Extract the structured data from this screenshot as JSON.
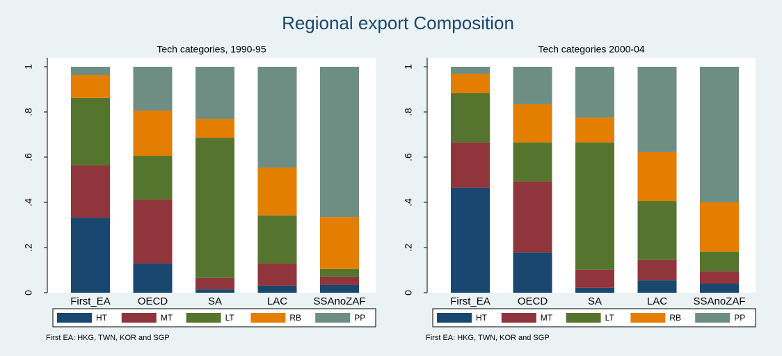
{
  "title": "Regional export Composition",
  "chart_data": [
    {
      "type": "stacked-bar",
      "title": "Tech categories, 1990-95",
      "categories": [
        "First_EA",
        "OECD",
        "SA",
        "LAC",
        "SSAnoZAF"
      ],
      "series": [
        {
          "name": "HT",
          "color": "#1a476f",
          "values": [
            0.332,
            0.129,
            0.015,
            0.031,
            0.034
          ]
        },
        {
          "name": "MT",
          "color": "#90353b",
          "values": [
            0.231,
            0.283,
            0.05,
            0.098,
            0.037
          ]
        },
        {
          "name": "LT",
          "color": "#55752f",
          "values": [
            0.299,
            0.194,
            0.621,
            0.213,
            0.034
          ]
        },
        {
          "name": "RB",
          "color": "#e37e00",
          "values": [
            0.101,
            0.2,
            0.083,
            0.212,
            0.23
          ]
        },
        {
          "name": "PP",
          "color": "#6e8e84",
          "values": [
            0.037,
            0.194,
            0.231,
            0.446,
            0.665
          ]
        }
      ],
      "ylim": [
        0,
        1
      ],
      "yticks": [
        0,
        {
          "value": 0.2,
          "label": ".2"
        },
        {
          "value": 0.4,
          "label": ".4"
        },
        {
          "value": 0.6,
          "label": ".6"
        },
        {
          "value": 0.8,
          "label": ".8"
        },
        1
      ],
      "note": "First EA: HKG, TWN, KOR and SGP"
    },
    {
      "type": "stacked-bar",
      "title": "Tech categories 2000-04",
      "categories": [
        "First_EA",
        "OECD",
        "SA",
        "LAC",
        "SSAnoZAF"
      ],
      "series": [
        {
          "name": "HT",
          "color": "#1a476f",
          "values": [
            0.465,
            0.178,
            0.022,
            0.055,
            0.04
          ]
        },
        {
          "name": "MT",
          "color": "#90353b",
          "values": [
            0.2,
            0.314,
            0.08,
            0.09,
            0.055
          ]
        },
        {
          "name": "LT",
          "color": "#55752f",
          "values": [
            0.218,
            0.173,
            0.563,
            0.261,
            0.087
          ]
        },
        {
          "name": "RB",
          "color": "#e37e00",
          "values": [
            0.086,
            0.169,
            0.11,
            0.216,
            0.218
          ]
        },
        {
          "name": "PP",
          "color": "#6e8e84",
          "values": [
            0.031,
            0.166,
            0.225,
            0.378,
            0.6
          ]
        }
      ],
      "ylim": [
        0,
        1
      ],
      "yticks": [
        0,
        {
          "value": 0.2,
          "label": ".2"
        },
        {
          "value": 0.4,
          "label": ".4"
        },
        {
          "value": 0.6,
          "label": ".6"
        },
        {
          "value": 0.8,
          "label": ".8"
        },
        1
      ],
      "note": "First EA: HKG, TWN, KOR and SGP"
    }
  ]
}
